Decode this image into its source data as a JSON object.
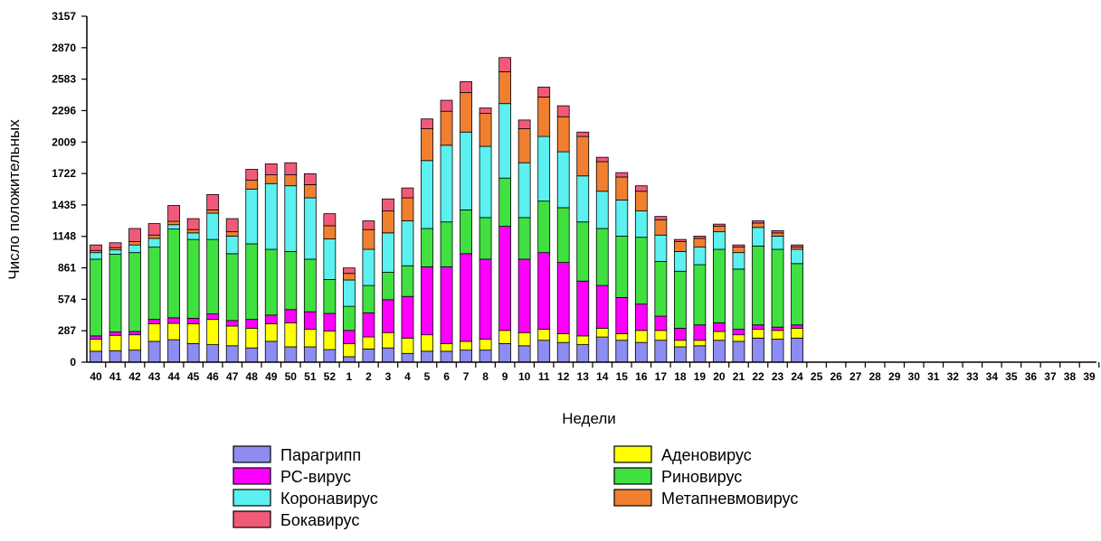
{
  "chart_data": {
    "type": "bar",
    "stacked": true,
    "xlabel": "Недели",
    "ylabel": "Число положительных",
    "ylim": [
      0,
      3157
    ],
    "yticks": [
      "0",
      "287",
      "574",
      "861",
      "1148",
      "1435",
      "1722",
      "2009",
      "2296",
      "2583",
      "2870",
      "3157"
    ],
    "categories": [
      "40",
      "41",
      "42",
      "43",
      "44",
      "45",
      "46",
      "47",
      "48",
      "49",
      "50",
      "51",
      "52",
      "1",
      "2",
      "3",
      "4",
      "5",
      "6",
      "7",
      "8",
      "9",
      "10",
      "11",
      "12",
      "13",
      "14",
      "15",
      "16",
      "17",
      "18",
      "19",
      "20",
      "21",
      "22",
      "23",
      "24",
      "25",
      "26",
      "27",
      "28",
      "29",
      "30",
      "31",
      "32",
      "33",
      "34",
      "35",
      "36",
      "37",
      "38",
      "39"
    ],
    "legend_position": "bottom",
    "series": [
      {
        "name": "Парагрипп",
        "color": "#8c8cf2",
        "values": [
          100,
          105,
          110,
          190,
          205,
          170,
          160,
          150,
          130,
          190,
          140,
          140,
          115,
          50,
          120,
          130,
          80,
          100,
          100,
          110,
          110,
          170,
          150,
          200,
          180,
          160,
          230,
          200,
          180,
          200,
          140,
          150,
          200,
          190,
          220,
          210,
          220,
          null,
          null,
          null,
          null,
          null,
          null,
          null,
          null,
          null,
          null,
          null,
          null,
          null,
          null,
          null
        ]
      },
      {
        "name": "Аденовирус",
        "color": "#ffff00",
        "values": [
          110,
          140,
          140,
          160,
          150,
          180,
          230,
          180,
          180,
          160,
          220,
          160,
          170,
          120,
          110,
          140,
          140,
          150,
          70,
          80,
          100,
          120,
          120,
          100,
          80,
          80,
          80,
          60,
          110,
          90,
          60,
          50,
          80,
          60,
          80,
          80,
          90,
          null,
          null,
          null,
          null,
          null,
          null,
          null,
          null,
          null,
          null,
          null,
          null,
          null,
          null,
          null
        ]
      },
      {
        "name": "РС-вирус",
        "color": "#ff00ff",
        "values": [
          30,
          30,
          30,
          40,
          50,
          50,
          50,
          50,
          80,
          80,
          120,
          160,
          160,
          120,
          220,
          300,
          380,
          620,
          700,
          800,
          730,
          950,
          670,
          700,
          650,
          500,
          390,
          330,
          240,
          130,
          110,
          140,
          80,
          50,
          40,
          30,
          30,
          null,
          null,
          null,
          null,
          null,
          null,
          null,
          null,
          null,
          null,
          null,
          null,
          null,
          null,
          null
        ]
      },
      {
        "name": "Риновирус",
        "color": "#40e040",
        "values": [
          700,
          710,
          720,
          660,
          810,
          720,
          680,
          610,
          690,
          600,
          530,
          480,
          310,
          220,
          250,
          250,
          280,
          350,
          410,
          400,
          380,
          440,
          380,
          470,
          500,
          540,
          520,
          560,
          610,
          500,
          520,
          550,
          670,
          550,
          720,
          710,
          560,
          null,
          null,
          null,
          null,
          null,
          null,
          null,
          null,
          null,
          null,
          null,
          null,
          null,
          null,
          null
        ]
      },
      {
        "name": "Коронавирус",
        "color": "#5cf0f0",
        "values": [
          60,
          40,
          70,
          80,
          40,
          60,
          240,
          160,
          500,
          600,
          600,
          560,
          370,
          240,
          330,
          360,
          410,
          620,
          700,
          710,
          650,
          680,
          500,
          590,
          510,
          420,
          340,
          330,
          240,
          240,
          180,
          160,
          160,
          150,
          170,
          120,
          130,
          null,
          null,
          null,
          null,
          null,
          null,
          null,
          null,
          null,
          null,
          null,
          null,
          null,
          null,
          null
        ]
      },
      {
        "name": "Метапневмовирус",
        "color": "#f08030",
        "values": [
          20,
          20,
          30,
          30,
          30,
          30,
          30,
          40,
          80,
          80,
          100,
          120,
          120,
          60,
          180,
          200,
          210,
          290,
          310,
          360,
          300,
          290,
          310,
          360,
          320,
          360,
          270,
          210,
          180,
          140,
          90,
          80,
          50,
          50,
          40,
          30,
          20,
          null,
          null,
          null,
          null,
          null,
          null,
          null,
          null,
          null,
          null,
          null,
          null,
          null,
          null,
          null
        ]
      },
      {
        "name": "Бокавирус",
        "color": "#f05a78",
        "values": [
          50,
          45,
          120,
          105,
          145,
          100,
          140,
          120,
          100,
          100,
          110,
          100,
          110,
          50,
          80,
          110,
          90,
          90,
          100,
          100,
          50,
          130,
          80,
          90,
          100,
          40,
          40,
          40,
          50,
          30,
          20,
          20,
          20,
          20,
          20,
          20,
          20,
          null,
          null,
          null,
          null,
          null,
          null,
          null,
          null,
          null,
          null,
          null,
          null,
          null,
          null,
          null
        ]
      }
    ]
  }
}
